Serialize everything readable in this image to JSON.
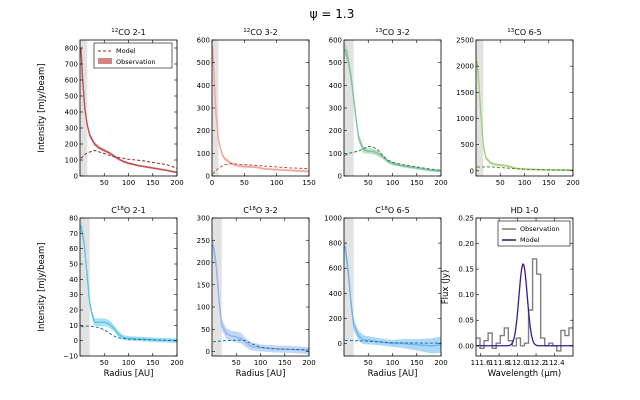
{
  "suptitle": "ψ = 1.3",
  "colors": {
    "line": "#b2373a",
    "twelve_co_21": "#c0504d",
    "twelve_co_32": "#f4a59a",
    "thirteen_co_32": "#7fc49a",
    "thirteen_co_65": "#a8cf7d",
    "c18o_21": "#5dc6e6",
    "c18o_32": "#8fb6ee",
    "c18o_65": "#6ab6ee",
    "hd_obs": "#808080",
    "hd_model": "#3c1a8c",
    "model_line": "#000000"
  },
  "chart_data": [
    {
      "type": "line",
      "title_prefix": "12",
      "title": "CO 2-1",
      "xlabel": "",
      "ylabel": "Intensity [mJy/beam]",
      "xlim": [
        0,
        200
      ],
      "ylim": [
        0,
        850
      ],
      "xticks": [
        "",
        "50",
        "100",
        "150",
        "200"
      ],
      "yticks": [
        "0",
        "100",
        "200",
        "300",
        "400",
        "500",
        "600",
        "700",
        "800"
      ],
      "shade": [
        0,
        15
      ],
      "band_color": "#c0504d",
      "legend": [
        "Model",
        "Observation"
      ],
      "obs": [
        [
          2,
          800
        ],
        [
          5,
          620
        ],
        [
          10,
          420
        ],
        [
          15,
          320
        ],
        [
          20,
          255
        ],
        [
          30,
          200
        ],
        [
          40,
          175
        ],
        [
          50,
          160
        ],
        [
          60,
          145
        ],
        [
          70,
          125
        ],
        [
          80,
          105
        ],
        [
          90,
          90
        ],
        [
          100,
          80
        ],
        [
          120,
          65
        ],
        [
          140,
          55
        ],
        [
          160,
          45
        ],
        [
          180,
          35
        ],
        [
          200,
          22
        ]
      ],
      "band": [
        30,
        26,
        20,
        16,
        14,
        12,
        10,
        9,
        8,
        8,
        7,
        7,
        7,
        6,
        6,
        6,
        6,
        6
      ],
      "model": [
        [
          2,
          110
        ],
        [
          10,
          135
        ],
        [
          20,
          150
        ],
        [
          30,
          160
        ],
        [
          40,
          150
        ],
        [
          50,
          140
        ],
        [
          60,
          130
        ],
        [
          70,
          120
        ],
        [
          80,
          115
        ],
        [
          100,
          105
        ],
        [
          130,
          95
        ],
        [
          160,
          80
        ],
        [
          180,
          70
        ],
        [
          200,
          48
        ]
      ]
    },
    {
      "type": "line",
      "title_prefix": "12",
      "title": "CO 3-2",
      "xlabel": "",
      "ylabel": "",
      "xlim": [
        0,
        150
      ],
      "ylim": [
        0,
        600
      ],
      "xticks": [
        "0",
        "50",
        "100",
        "150"
      ],
      "yticks": [
        "0",
        "100",
        "200",
        "300",
        "400",
        "500",
        "600"
      ],
      "shade": [
        0,
        10
      ],
      "band_color": "#f4a59a",
      "obs": [
        [
          1,
          570
        ],
        [
          3,
          450
        ],
        [
          6,
          280
        ],
        [
          10,
          160
        ],
        [
          15,
          100
        ],
        [
          20,
          75
        ],
        [
          30,
          55
        ],
        [
          40,
          45
        ],
        [
          50,
          42
        ],
        [
          60,
          40
        ],
        [
          70,
          38
        ],
        [
          80,
          32
        ],
        [
          100,
          28
        ],
        [
          120,
          25
        ],
        [
          150,
          20
        ]
      ],
      "band": [
        25,
        20,
        16,
        12,
        10,
        8,
        7,
        6,
        6,
        5,
        5,
        5,
        5,
        5,
        5
      ],
      "model": [
        [
          1,
          10
        ],
        [
          5,
          20
        ],
        [
          10,
          35
        ],
        [
          20,
          50
        ],
        [
          30,
          55
        ],
        [
          40,
          52
        ],
        [
          50,
          50
        ],
        [
          60,
          48
        ],
        [
          70,
          46
        ],
        [
          80,
          44
        ],
        [
          100,
          40
        ],
        [
          120,
          36
        ],
        [
          150,
          32
        ]
      ]
    },
    {
      "type": "line",
      "title_prefix": "13",
      "title": "CO 3-2",
      "xlabel": "",
      "ylabel": "",
      "xlim": [
        0,
        200
      ],
      "ylim": [
        0,
        600
      ],
      "xticks": [
        "",
        "50",
        "100",
        "150",
        "200"
      ],
      "yticks": [
        "0",
        "100",
        "200",
        "300",
        "400",
        "500",
        "600"
      ],
      "shade": [
        0,
        20
      ],
      "band_color": "#7fc49a",
      "obs": [
        [
          2,
          560
        ],
        [
          8,
          520
        ],
        [
          15,
          430
        ],
        [
          20,
          340
        ],
        [
          25,
          250
        ],
        [
          30,
          170
        ],
        [
          40,
          115
        ],
        [
          50,
          110
        ],
        [
          60,
          108
        ],
        [
          70,
          100
        ],
        [
          80,
          85
        ],
        [
          90,
          65
        ],
        [
          100,
          55
        ],
        [
          120,
          45
        ],
        [
          150,
          35
        ],
        [
          180,
          25
        ],
        [
          200,
          22
        ]
      ],
      "band": [
        30,
        28,
        25,
        22,
        20,
        18,
        14,
        12,
        12,
        12,
        10,
        9,
        8,
        7,
        6,
        6,
        6
      ],
      "model": [
        [
          2,
          90
        ],
        [
          10,
          100
        ],
        [
          20,
          105
        ],
        [
          30,
          110
        ],
        [
          40,
          120
        ],
        [
          50,
          130
        ],
        [
          60,
          128
        ],
        [
          70,
          115
        ],
        [
          80,
          90
        ],
        [
          90,
          70
        ],
        [
          100,
          60
        ],
        [
          120,
          50
        ],
        [
          150,
          40
        ],
        [
          180,
          30
        ],
        [
          200,
          25
        ]
      ]
    },
    {
      "type": "line",
      "title_prefix": "13",
      "title": "CO 6-5",
      "xlabel": "",
      "ylabel": "",
      "xlim": [
        0,
        200
      ],
      "ylim": [
        -100,
        2500
      ],
      "xticks": [
        "",
        "50",
        "100",
        "150",
        "200"
      ],
      "yticks": [
        "0",
        "500",
        "1000",
        "1500",
        "2000",
        "2500"
      ],
      "shade": [
        0,
        15
      ],
      "band_color": "#a8cf7d",
      "obs": [
        [
          2,
          2100
        ],
        [
          5,
          1800
        ],
        [
          10,
          1100
        ],
        [
          15,
          500
        ],
        [
          20,
          250
        ],
        [
          30,
          150
        ],
        [
          40,
          120
        ],
        [
          50,
          110
        ],
        [
          60,
          100
        ],
        [
          70,
          80
        ],
        [
          80,
          50
        ],
        [
          100,
          30
        ],
        [
          130,
          20
        ],
        [
          160,
          15
        ],
        [
          200,
          10
        ]
      ],
      "band": [
        80,
        70,
        60,
        50,
        40,
        30,
        25,
        22,
        20,
        20,
        18,
        18,
        18,
        18,
        18
      ],
      "model": [
        [
          2,
          70
        ],
        [
          20,
          75
        ],
        [
          40,
          70
        ],
        [
          60,
          55
        ],
        [
          80,
          40
        ],
        [
          100,
          30
        ],
        [
          130,
          22
        ],
        [
          160,
          15
        ],
        [
          200,
          12
        ]
      ]
    },
    {
      "type": "line",
      "title_prefix": "18",
      "title": "O 2-1",
      "xlabel": "Radius [AU]",
      "ylabel": "Intensity [mJy/beam]",
      "xlim": [
        0,
        200
      ],
      "ylim": [
        -10,
        80
      ],
      "xticks": [
        "",
        "50",
        "100",
        "150",
        "200"
      ],
      "yticks": [
        "−10",
        "0",
        "10",
        "20",
        "30",
        "40",
        "50",
        "60",
        "70",
        "80"
      ],
      "shade": [
        0,
        20
      ],
      "band_color": "#5dc6e6",
      "obs": [
        [
          2,
          75
        ],
        [
          8,
          65
        ],
        [
          14,
          45
        ],
        [
          20,
          25
        ],
        [
          25,
          17
        ],
        [
          30,
          12
        ],
        [
          40,
          12
        ],
        [
          50,
          12
        ],
        [
          60,
          11
        ],
        [
          70,
          8
        ],
        [
          80,
          4
        ],
        [
          90,
          2
        ],
        [
          100,
          1.5
        ],
        [
          130,
          1
        ],
        [
          160,
          0.5
        ],
        [
          200,
          0
        ]
      ],
      "band": [
        4,
        3.5,
        3,
        3,
        2.5,
        2.5,
        2.5,
        2.5,
        2.5,
        2,
        2,
        1.5,
        1.5,
        1.5,
        1.5,
        1.5
      ],
      "model": [
        [
          2,
          9
        ],
        [
          10,
          9.5
        ],
        [
          20,
          9.5
        ],
        [
          30,
          9
        ],
        [
          40,
          8.5
        ],
        [
          50,
          7
        ],
        [
          60,
          5
        ],
        [
          70,
          3
        ],
        [
          80,
          1.8
        ],
        [
          100,
          1
        ],
        [
          150,
          0.5
        ],
        [
          200,
          0
        ]
      ]
    },
    {
      "type": "line",
      "title_prefix": "18",
      "title": "O 3-2",
      "xlabel": "Radius [AU]",
      "ylabel": "",
      "xlim": [
        0,
        200
      ],
      "ylim": [
        -10,
        300
      ],
      "xticks": [
        "",
        "50",
        "100",
        "150",
        "200"
      ],
      "yticks": [
        "0",
        "50",
        "100",
        "150",
        "200",
        "250",
        "300"
      ],
      "shade": [
        0,
        20
      ],
      "band_color": "#8fb6ee",
      "obs": [
        [
          2,
          240
        ],
        [
          8,
          200
        ],
        [
          15,
          110
        ],
        [
          20,
          60
        ],
        [
          30,
          40
        ],
        [
          40,
          35
        ],
        [
          50,
          33
        ],
        [
          60,
          30
        ],
        [
          70,
          20
        ],
        [
          80,
          12
        ],
        [
          100,
          8
        ],
        [
          130,
          6
        ],
        [
          160,
          5
        ],
        [
          200,
          2
        ]
      ],
      "band": [
        18,
        16,
        14,
        12,
        12,
        12,
        12,
        12,
        10,
        9,
        8,
        8,
        8,
        8
      ],
      "model": [
        [
          2,
          22
        ],
        [
          20,
          24
        ],
        [
          40,
          25
        ],
        [
          60,
          26
        ],
        [
          70,
          24
        ],
        [
          80,
          18
        ],
        [
          100,
          10
        ],
        [
          130,
          6
        ],
        [
          160,
          5
        ],
        [
          200,
          4
        ]
      ]
    },
    {
      "type": "line",
      "title_prefix": "18",
      "title": "O 6-5",
      "xlabel": "Radius [AU]",
      "ylabel": "",
      "xlim": [
        0,
        200
      ],
      "ylim": [
        -100,
        1000
      ],
      "xticks": [
        "",
        "50",
        "100",
        "150",
        "200"
      ],
      "yticks": [
        "0",
        "200",
        "400",
        "600",
        "800",
        "1000"
      ],
      "shade": [
        0,
        20
      ],
      "band_color": "#6ab6ee",
      "obs": [
        [
          2,
          780
        ],
        [
          8,
          600
        ],
        [
          15,
          300
        ],
        [
          20,
          150
        ],
        [
          30,
          60
        ],
        [
          40,
          30
        ],
        [
          60,
          20
        ],
        [
          80,
          10
        ],
        [
          100,
          0
        ],
        [
          120,
          0
        ],
        [
          150,
          -10
        ],
        [
          180,
          -20
        ],
        [
          200,
          -10
        ]
      ],
      "band": [
        60,
        55,
        50,
        45,
        40,
        35,
        30,
        28,
        28,
        35,
        45,
        60,
        65
      ],
      "model": [
        [
          2,
          25
        ],
        [
          20,
          22
        ],
        [
          40,
          20
        ],
        [
          60,
          15
        ],
        [
          80,
          10
        ],
        [
          100,
          6
        ],
        [
          130,
          4
        ],
        [
          160,
          3
        ],
        [
          200,
          2
        ]
      ]
    },
    {
      "type": "line",
      "title": "HD 1-0",
      "xlabel": "Wavelength (μm)",
      "ylabel": "Flux (Jy)",
      "xlim": [
        111.55,
        112.6
      ],
      "ylim": [
        -0.02,
        0.25
      ],
      "xticks": [
        "111.6",
        "111.8",
        "112.0",
        "112.2",
        "112.4"
      ],
      "yticks": [
        "0.00",
        "0.05",
        "0.10",
        "0.15",
        "0.20",
        "0.25"
      ],
      "legend": [
        "Observation",
        "Model"
      ],
      "obs_steps": [
        0.015,
        -0.005,
        0.01,
        0.025,
        -0.005,
        0.005,
        0.02,
        0.035,
        0.01,
        0.0,
        0.015,
        0.0,
        0.005,
        0.07,
        0.17,
        0.14,
        0.015,
        0.0,
        0.005,
        0.0,
        -0.01,
        0.03,
        0.02,
        0.035
      ],
      "model_peak": 0.16,
      "model_center": 112.06
    }
  ]
}
